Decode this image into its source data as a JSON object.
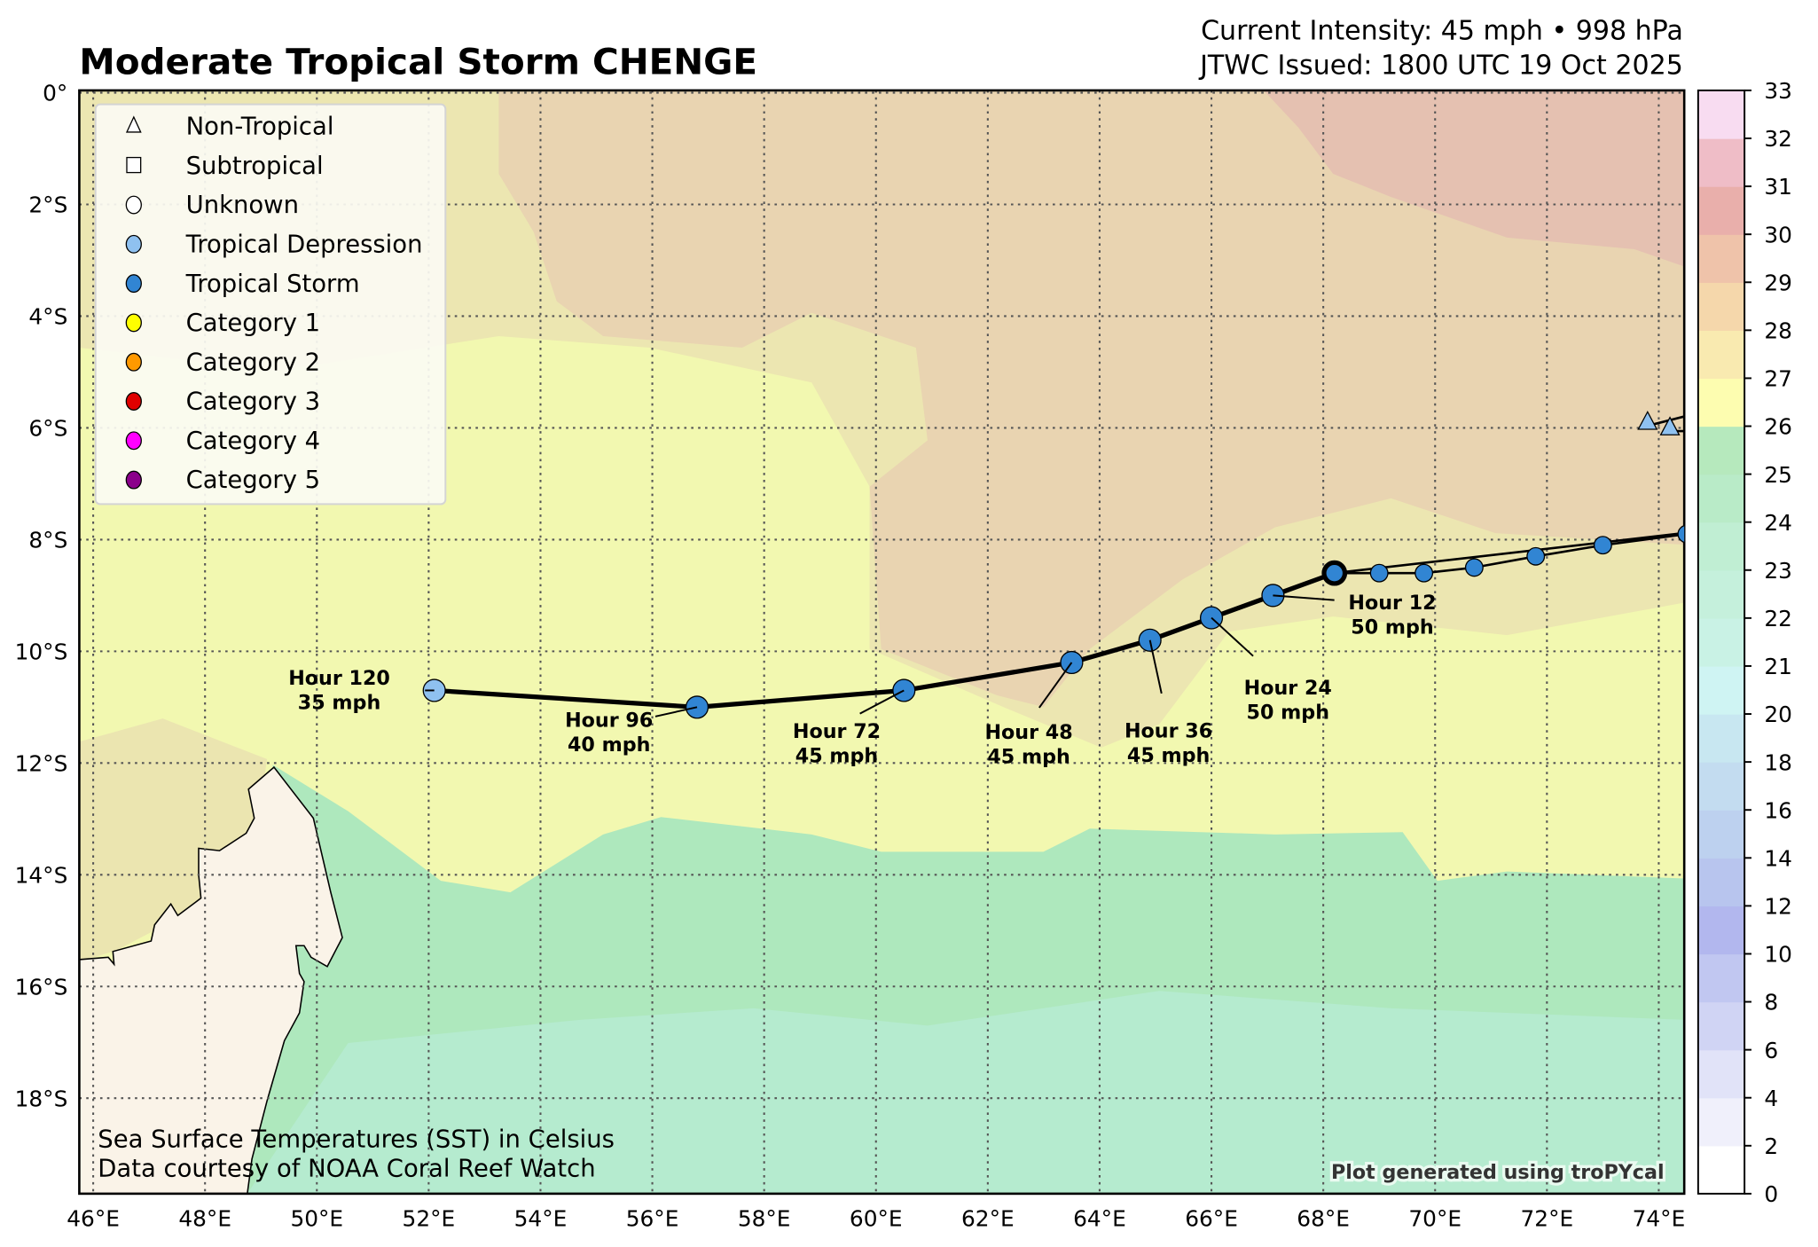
{
  "header": {
    "title": "Moderate Tropical Storm CHENGE",
    "intensity": "Current Intensity: 45 mph • 998 hPa",
    "issued": "JTWC Issued: 1800 UTC 19 Oct 2025"
  },
  "legend": [
    {
      "label": "Non-Tropical",
      "shape": "triangle",
      "color": "#ffffff"
    },
    {
      "label": "Subtropical",
      "shape": "square",
      "color": "#ffffff"
    },
    {
      "label": "Unknown",
      "shape": "circle",
      "color": "#ffffff"
    },
    {
      "label": "Tropical Depression",
      "shape": "circle",
      "color": "#8fc1f0"
    },
    {
      "label": "Tropical Storm",
      "shape": "circle",
      "color": "#3185d3"
    },
    {
      "label": "Category 1",
      "shape": "circle",
      "color": "#ffff00"
    },
    {
      "label": "Category 2",
      "shape": "circle",
      "color": "#ff9900"
    },
    {
      "label": "Category 3",
      "shape": "circle",
      "color": "#e00000"
    },
    {
      "label": "Category 4",
      "shape": "circle",
      "color": "#ff00ff"
    },
    {
      "label": "Category 5",
      "shape": "circle",
      "color": "#8b008b"
    }
  ],
  "axes": {
    "lat_labels": [
      "0°",
      "2°S",
      "4°S",
      "6°S",
      "8°S",
      "10°S",
      "12°S",
      "14°S",
      "16°S",
      "18°S"
    ],
    "lat_values": [
      0,
      2,
      4,
      6,
      8,
      10,
      12,
      14,
      16,
      18
    ],
    "lon_labels": [
      "46°E",
      "48°E",
      "50°E",
      "52°E",
      "54°E",
      "56°E",
      "58°E",
      "60°E",
      "62°E",
      "64°E",
      "66°E",
      "68°E",
      "70°E",
      "72°E",
      "74°E"
    ],
    "lon_values": [
      46,
      48,
      50,
      52,
      54,
      56,
      58,
      60,
      62,
      64,
      66,
      68,
      70,
      72,
      74
    ],
    "lon_range": [
      45.75,
      74.45
    ],
    "lat_range_south": [
      0,
      19.7
    ]
  },
  "colorbar": {
    "ticks": [
      "0",
      "2",
      "4",
      "6",
      "8",
      "10",
      "12",
      "14",
      "16",
      "18",
      "20",
      "21",
      "22",
      "23",
      "24",
      "25",
      "26",
      "27",
      "28",
      "29",
      "30",
      "31",
      "32",
      "33"
    ],
    "colors": [
      "#ffffff",
      "#f0f0fb",
      "#e1e3f8",
      "#d0d4f4",
      "#c1c7f1",
      "#b2b7ee",
      "#b8c5ee",
      "#bdd1ef",
      "#c3dcf0",
      "#c8e7f1",
      "#cff4f3",
      "#c9f2e5",
      "#c5f0dc",
      "#c0eed3",
      "#b9ebc8",
      "#b6e9bd",
      "#fdfdb0",
      "#f9eab0",
      "#f5d7ab",
      "#efc3aa",
      "#e9afab",
      "#efbdc7",
      "#f8dcf1"
    ]
  },
  "past_track": [
    {
      "lon": 74.2,
      "lat": 6.0,
      "type": "triangle",
      "color": "#8fc1f0"
    },
    {
      "lon": 73.8,
      "lat": 5.9,
      "type": "triangle",
      "color": "#8fc1f0"
    }
  ],
  "past_track_points": [
    {
      "lon": 74.5,
      "lat": 7.9
    },
    {
      "lon": 73.0,
      "lat": 8.1
    },
    {
      "lon": 71.8,
      "lat": 8.3
    },
    {
      "lon": 70.7,
      "lat": 8.5
    },
    {
      "lon": 69.8,
      "lat": 8.6
    },
    {
      "lon": 69.0,
      "lat": 8.6
    }
  ],
  "current": {
    "lon": 68.2,
    "lat": 8.6
  },
  "forecast": [
    {
      "hour_label": "Hour 12",
      "wind": "50 mph",
      "lon": 67.1,
      "lat": 9.0,
      "color": "#3185d3"
    },
    {
      "hour_label": "Hour 24",
      "wind": "50 mph",
      "lon": 66.0,
      "lat": 9.4,
      "color": "#3185d3"
    },
    {
      "hour_label": "Hour 36",
      "wind": "45 mph",
      "lon": 64.9,
      "lat": 9.8,
      "color": "#3185d3"
    },
    {
      "hour_label": "Hour 48",
      "wind": "45 mph",
      "lon": 63.5,
      "lat": 10.2,
      "color": "#3185d3"
    },
    {
      "hour_label": "Hour 72",
      "wind": "45 mph",
      "lon": 60.5,
      "lat": 10.7,
      "color": "#3185d3"
    },
    {
      "hour_label": "Hour 96",
      "wind": "40 mph",
      "lon": 56.8,
      "lat": 11.0,
      "color": "#3185d3"
    },
    {
      "hour_label": "Hour 120",
      "wind": "35 mph",
      "lon": 52.1,
      "lat": 10.7,
      "color": "#8fc1f0"
    }
  ],
  "footer": {
    "sst_line1": "Sea Surface Temperatures (SST) in Celsius",
    "sst_line2": "Data courtesy of NOAA Coral Reef Watch",
    "credit": "Plot generated using troPYcal"
  }
}
